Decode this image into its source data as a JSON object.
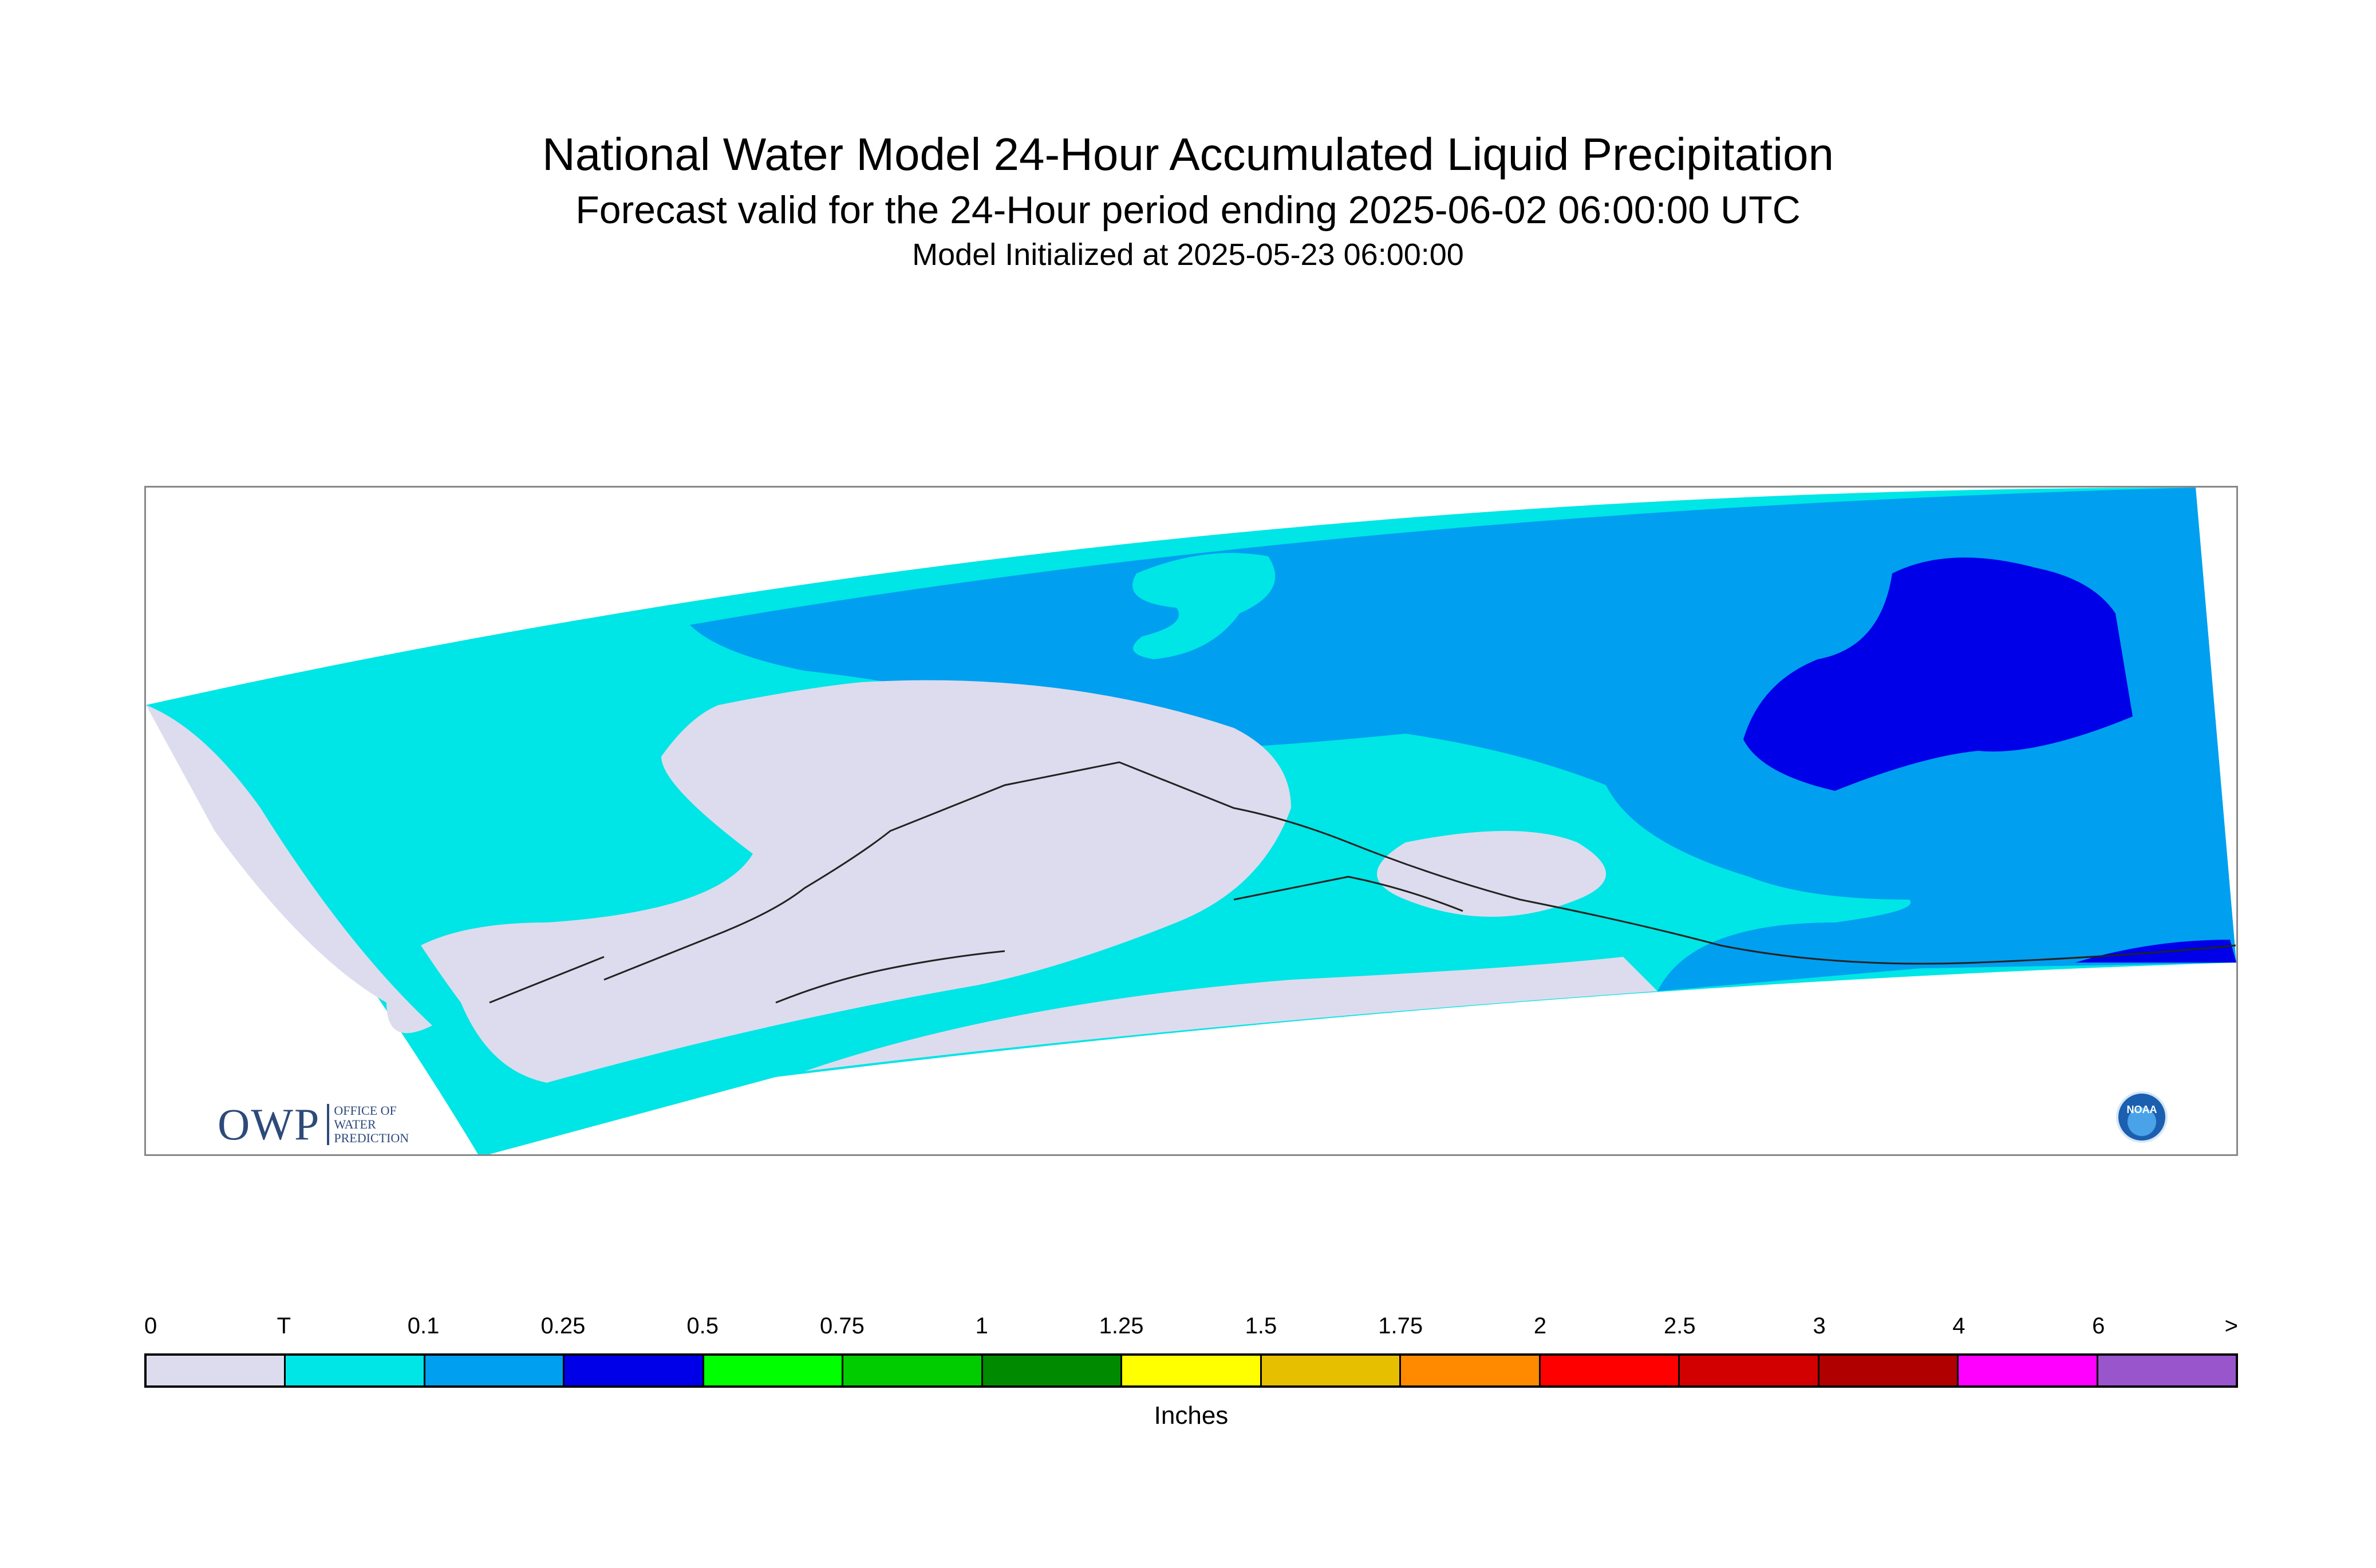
{
  "title": "National Water Model 24-Hour Accumulated Liquid Precipitation",
  "subtitle": "Forecast valid for the 24-Hour period ending 2025-06-02 06:00:00 UTC",
  "initialized": "Model Initialized at 2025-05-23 06:00:00",
  "logos": {
    "owp_mark": "OWP",
    "owp_text": [
      "OFFICE OF",
      "WATER",
      "PREDICTION"
    ],
    "noaa_text": "NOAA"
  },
  "colors": {
    "trace_zero": "#dcdcee",
    "light": "#00e5e5",
    "mid": "#009ff0",
    "heavy": "#0000e8",
    "coast": "#222222"
  },
  "legend": {
    "units": "Inches",
    "ticks": [
      "0",
      "T",
      "0.1",
      "0.25",
      "0.5",
      "0.75",
      "1",
      "1.25",
      "1.5",
      "1.75",
      "2",
      "2.5",
      "3",
      "4",
      "6",
      ">"
    ],
    "swatches": [
      "#dcdcee",
      "#00e5e5",
      "#009ff0",
      "#0000e8",
      "#00ff00",
      "#00cc00",
      "#008a00",
      "#ffff00",
      "#e6bf00",
      "#ff8a00",
      "#ff0000",
      "#d20000",
      "#b00000",
      "#ff00ff",
      "#9955cc"
    ]
  }
}
